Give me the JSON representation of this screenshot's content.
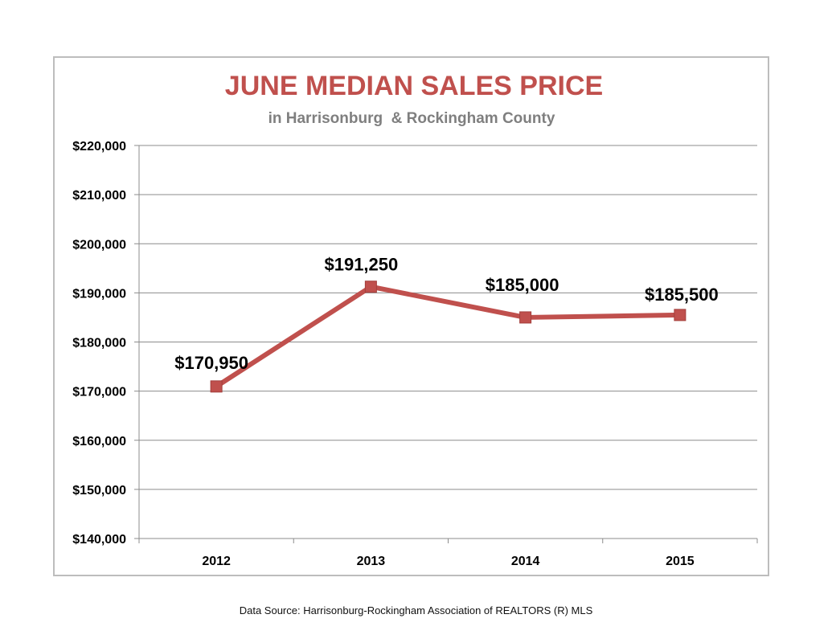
{
  "chart_data": {
    "type": "line",
    "title": "JUNE MEDIAN SALES PRICE",
    "subtitle": "in Harrisonburg  & Rockingham County",
    "categories": [
      "2012",
      "2013",
      "2014",
      "2015"
    ],
    "series": [
      {
        "values": [
          170950,
          191250,
          185000,
          185500
        ],
        "labels": [
          "$170,950",
          "$191,250",
          "$185,000",
          "$185,500"
        ],
        "color": "#c0504d"
      }
    ],
    "y_ticks": [
      "$140,000",
      "$150,000",
      "$160,000",
      "$170,000",
      "$180,000",
      "$190,000",
      "$200,000",
      "$210,000",
      "$220,000"
    ],
    "ylim": [
      140000,
      220000
    ],
    "y_step": 10000,
    "grid": true,
    "legend": "none",
    "title_color": "#c0504d",
    "subtitle_color": "#7f7f7f"
  },
  "footer": {
    "source": "Data Source: Harrisonburg-Rockingham Association of REALTORS (R) MLS"
  }
}
